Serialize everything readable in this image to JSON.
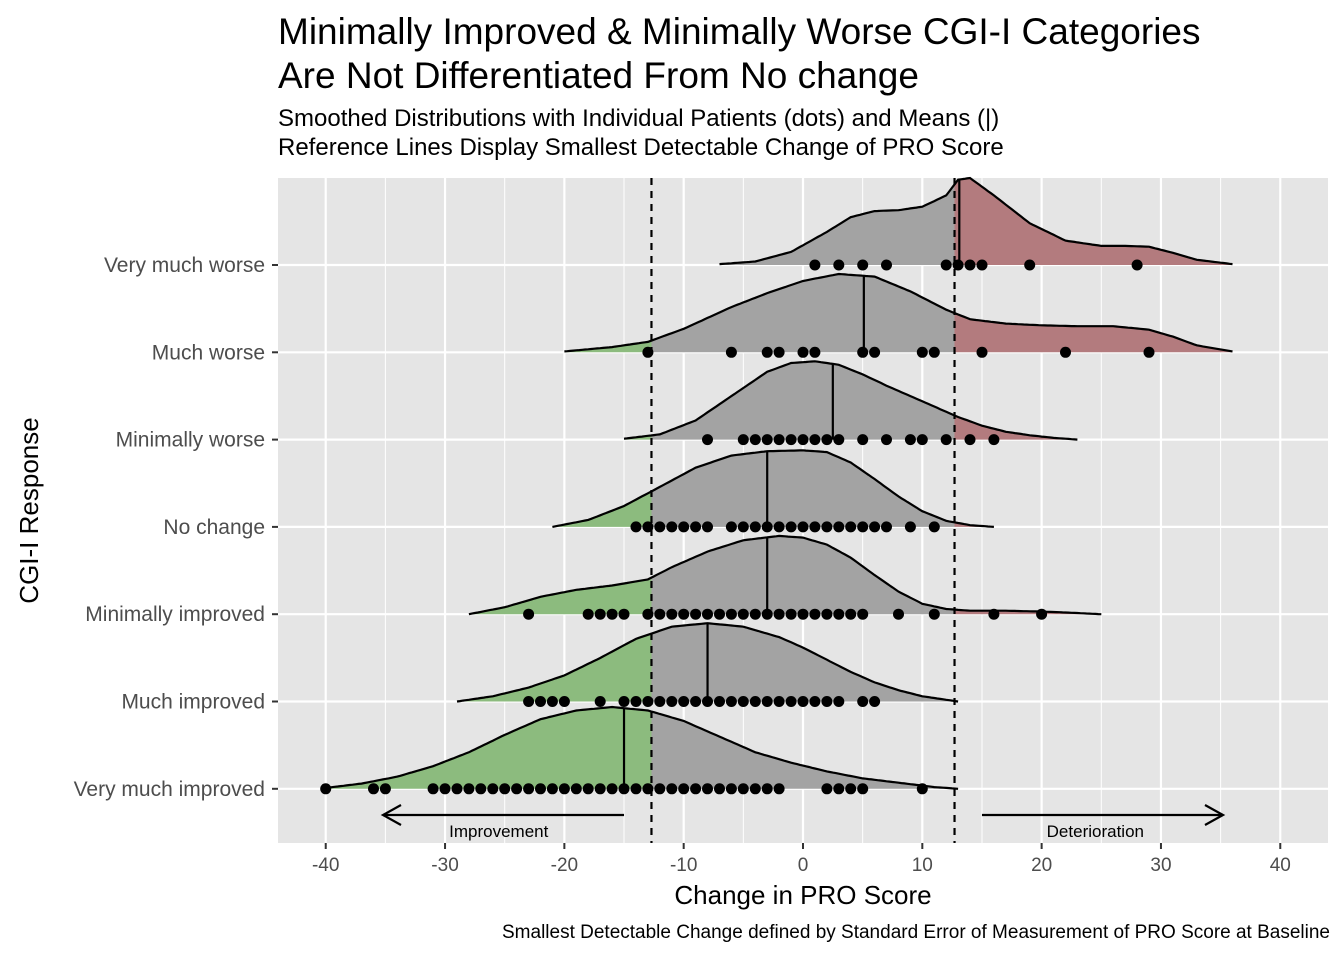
{
  "title_lines": [
    "Minimally Improved & Minimally Worse CGI-I Categories",
    "Are Not Differentiated From No change"
  ],
  "subtitle_lines": [
    "Smoothed Distributions with Individual Patients (dots) and Means (|)",
    "Reference Lines Display Smallest Detectable Change of PRO Score"
  ],
  "caption": "Smallest Detectable Change defined by Standard Error of Measurement of PRO Score at Baseline",
  "colors": {
    "panel_bg": "#e5e5e5",
    "grid": "#ffffff",
    "ridge_mid": "#a3a3a3",
    "ridge_improve": "#8cbb7e",
    "ridge_worse": "#b37b7e",
    "outline": "#000000",
    "point": "#000000"
  },
  "chart_data": {
    "type": "ridgeline",
    "xlabel": "Change in PRO Score",
    "ylabel": "CGI-I Response",
    "xlim": [
      -44,
      44
    ],
    "x_ticks": [
      -40,
      -30,
      -20,
      -10,
      0,
      10,
      20,
      30,
      40
    ],
    "x_tick_labels": [
      "-40",
      "-30",
      "-20",
      "-10",
      "0",
      "10",
      "20",
      "30",
      "40"
    ],
    "grid": true,
    "reference_lines": [
      -12.7,
      12.7
    ],
    "annotations": [
      {
        "label": "Improvement",
        "arrow_from": -15,
        "arrow_to": -35.2,
        "text_x": -25.5
      },
      {
        "label": "Deterioration",
        "arrow_from": 15,
        "arrow_to": 35.2,
        "text_x": 24.5
      }
    ],
    "categories": [
      "Very much worse",
      "Much worse",
      "Minimally worse",
      "No change",
      "Minimally improved",
      "Much improved",
      "Very much improved"
    ],
    "series": [
      {
        "category": "Very much worse",
        "mean": 13.1,
        "points": [
          1,
          3,
          5,
          7,
          12,
          13,
          14,
          15,
          19,
          28
        ],
        "density_x": [
          -7,
          -4,
          -1,
          2,
          4,
          6,
          8,
          10,
          12,
          13,
          14,
          16,
          19,
          22,
          25,
          27,
          29,
          31,
          33,
          36
        ],
        "density_y": [
          0.01,
          0.04,
          0.15,
          0.38,
          0.55,
          0.62,
          0.63,
          0.67,
          0.8,
          0.98,
          1.0,
          0.8,
          0.48,
          0.28,
          0.22,
          0.22,
          0.21,
          0.14,
          0.06,
          0.01
        ]
      },
      {
        "category": "Much worse",
        "mean": 5.1,
        "points": [
          -13,
          -6,
          -3,
          -2,
          0,
          1,
          5,
          6,
          10,
          11,
          15,
          22,
          29
        ],
        "density_x": [
          -20,
          -16,
          -13,
          -10,
          -6,
          -3,
          0,
          3,
          6,
          9,
          12,
          14,
          17,
          20,
          23,
          26,
          29,
          31,
          33,
          36
        ],
        "density_y": [
          0.01,
          0.06,
          0.12,
          0.27,
          0.52,
          0.68,
          0.82,
          0.9,
          0.87,
          0.7,
          0.49,
          0.38,
          0.33,
          0.31,
          0.3,
          0.3,
          0.26,
          0.18,
          0.08,
          0.01
        ]
      },
      {
        "category": "Minimally worse",
        "mean": 2.5,
        "points": [
          -8,
          -5,
          -4,
          -3,
          -2,
          -1,
          0,
          1,
          2,
          3,
          5,
          7,
          9,
          10,
          12,
          14,
          16
        ],
        "density_x": [
          -15,
          -12,
          -9,
          -6,
          -3,
          -1,
          1,
          3,
          5,
          7,
          9,
          11,
          13,
          15,
          17,
          19,
          21,
          23
        ],
        "density_y": [
          0.01,
          0.06,
          0.22,
          0.5,
          0.78,
          0.88,
          0.9,
          0.86,
          0.75,
          0.62,
          0.5,
          0.38,
          0.26,
          0.16,
          0.09,
          0.05,
          0.02,
          0.0
        ]
      },
      {
        "category": "No change",
        "mean": -3,
        "points": [
          -14,
          -13,
          -12,
          -11,
          -10,
          -9,
          -8,
          -6,
          -5,
          -4,
          -3,
          -2,
          -1,
          0,
          1,
          2,
          3,
          4,
          5,
          6,
          7,
          9,
          11
        ],
        "density_x": [
          -21,
          -18,
          -15,
          -12,
          -9,
          -6,
          -3,
          0,
          2,
          4,
          6,
          8,
          10,
          12,
          14,
          16
        ],
        "density_y": [
          0.0,
          0.08,
          0.24,
          0.46,
          0.68,
          0.82,
          0.87,
          0.88,
          0.86,
          0.74,
          0.55,
          0.35,
          0.18,
          0.07,
          0.02,
          0.0
        ]
      },
      {
        "category": "Minimally improved",
        "mean": -3,
        "points": [
          -23,
          -18,
          -17,
          -16,
          -15,
          -13,
          -12,
          -11,
          -10,
          -9,
          -8,
          -7,
          -6,
          -5,
          -4,
          -3,
          -2,
          -1,
          0,
          1,
          2,
          3,
          4,
          5,
          8,
          11,
          16,
          20
        ],
        "density_x": [
          -28,
          -25,
          -22,
          -19,
          -16,
          -13,
          -11,
          -8,
          -5,
          -2,
          0,
          2,
          4,
          6,
          8,
          10,
          12,
          14,
          17,
          20,
          22,
          25
        ],
        "density_y": [
          0.0,
          0.08,
          0.2,
          0.28,
          0.33,
          0.4,
          0.54,
          0.72,
          0.85,
          0.9,
          0.88,
          0.8,
          0.65,
          0.45,
          0.26,
          0.12,
          0.06,
          0.04,
          0.04,
          0.03,
          0.02,
          0.0
        ]
      },
      {
        "category": "Much improved",
        "mean": -8,
        "points": [
          -23,
          -22,
          -21,
          -20,
          -17,
          -15,
          -14,
          -13,
          -12,
          -11,
          -10,
          -9,
          -8,
          -7,
          -6,
          -5,
          -4,
          -3,
          -2,
          -1,
          0,
          1,
          2,
          3,
          5,
          6
        ],
        "density_x": [
          -29,
          -26,
          -23,
          -20,
          -17,
          -14,
          -11,
          -8,
          -5,
          -2,
          0,
          2,
          4,
          6,
          8,
          10,
          12,
          13
        ],
        "density_y": [
          0.0,
          0.06,
          0.16,
          0.3,
          0.5,
          0.72,
          0.86,
          0.9,
          0.86,
          0.74,
          0.62,
          0.48,
          0.34,
          0.22,
          0.13,
          0.06,
          0.02,
          0.0
        ]
      },
      {
        "category": "Very much improved",
        "mean": -15,
        "points": [
          -40,
          -36,
          -35,
          -31,
          -30,
          -29,
          -28,
          -27,
          -26,
          -25,
          -24,
          -23,
          -22,
          -21,
          -20,
          -19,
          -18,
          -17,
          -16,
          -15,
          -14,
          -13,
          -12,
          -11,
          -10,
          -9,
          -8,
          -7,
          -6,
          -5,
          -4,
          -3,
          -2,
          2,
          3,
          4,
          5,
          10
        ],
        "density_x": [
          -40,
          -37,
          -34,
          -31,
          -28,
          -25,
          -22,
          -19,
          -16,
          -13,
          -10,
          -7,
          -4,
          -1,
          2,
          5,
          8,
          11,
          13
        ],
        "density_y": [
          0.01,
          0.06,
          0.14,
          0.26,
          0.42,
          0.62,
          0.8,
          0.9,
          0.94,
          0.9,
          0.78,
          0.6,
          0.42,
          0.3,
          0.2,
          0.12,
          0.07,
          0.02,
          0.0
        ]
      }
    ]
  }
}
